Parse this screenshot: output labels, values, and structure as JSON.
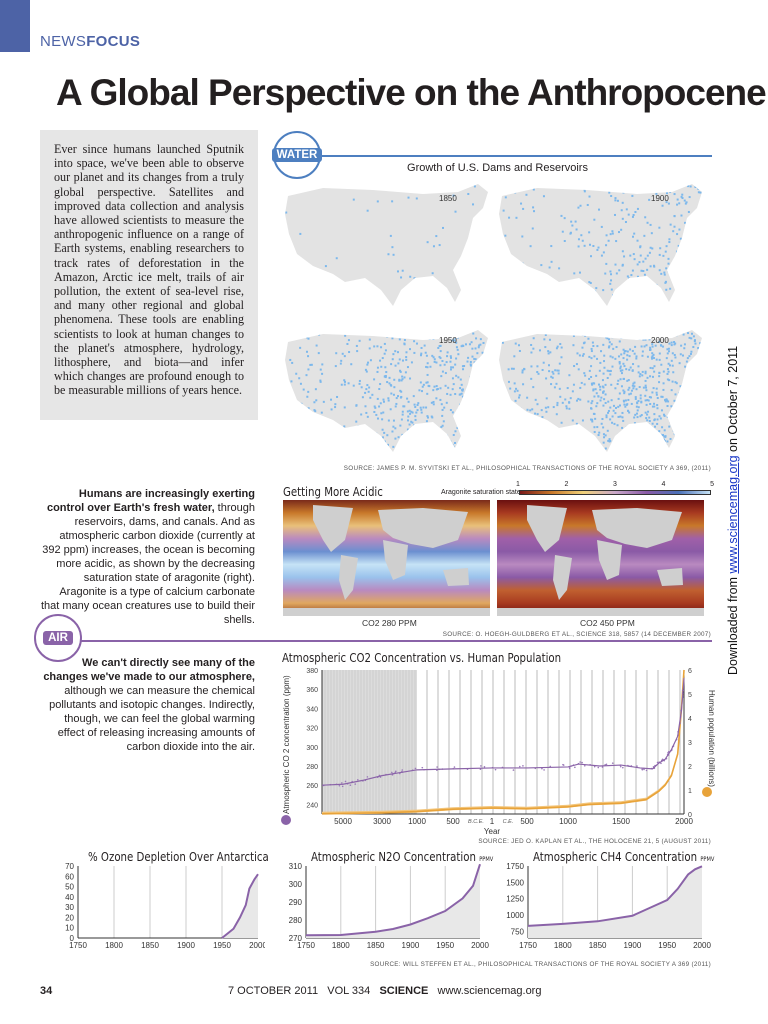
{
  "header": {
    "section_plain": "NEWS",
    "section_bold": "FOCUS",
    "title": "A Global Perspective on the Anthropocene"
  },
  "intro": "Ever since humans launched Sputnik into space, we've been able to observe our planet and its changes from a truly global perspective. Satellites and improved data collection and analysis have allowed scientists to measure the anthropogenic influence on a range of Earth systems, enabling researchers to track rates of deforestation in the Amazon, Arctic ice melt, trails of air pollution, the extent of sea-level rise, and many other regional and global phenomena. These tools are enabling scientists to look at human changes to the planet's atmosphere, hydrology, lithosphere, and biota—and infer which changes are profound enough to be measurable millions of years hence.",
  "water": {
    "badge": "WATER",
    "dams_title": "Growth of U.S. Dams and Reservoirs",
    "dam_years": [
      "1850",
      "1900",
      "1950",
      "2000"
    ],
    "dams_source": "SOURCE: JAMES P. M. SYVITSKI ET AL., PHILOSOPHICAL TRANSACTIONS OF THE ROYAL SOCIETY A 369, (2011)",
    "side_bold": "Humans are increasingly exerting control over Earth's fresh water,",
    "side_text": " through reservoirs, dams, and canals. And as atmospheric carbon dioxide (currently at 392 ppm) increases, the ocean is becoming more acidic, as shown by the decreasing saturation state of aragonite (right). Aragonite is a type of calcium carbonate that many ocean creatures use to build their shells.",
    "acid_title": "Getting More Acidic",
    "scale_label": "Aragonite saturation state",
    "scale_ticks": [
      "1",
      "2",
      "3",
      "4",
      "5"
    ],
    "map_left_label": "CO2 280 PPM",
    "map_right_label": "CO2 450 PPM",
    "acid_source": "SOURCE: O. HOEGH-GULDBERG ET AL., SCIENCE 318, 5857 (14 DECEMBER 2007)",
    "colors": {
      "accent": "#4d7fc0",
      "dam_dot": "#7cb8ec",
      "land": "#e3e3e3"
    }
  },
  "air": {
    "badge": "AIR",
    "side_bold": "We can't directly see many of the changes we've made to our atmosphere,",
    "side_text": " although we can measure the chemical pollutants and isotopic changes. Indirectly, though, we can feel the global warming effect of releasing increasing amounts of carbon dioxide into the air.",
    "co2_source": "SOURCE: JED O. KAPLAN ET AL., THE HOLOCENE 21, 5 (AUGUST 2011)",
    "bottom_source": "SOURCE: WILL STEFFEN ET AL., PHILOSOPHICAL TRANSACTIONS OF THE ROYAL SOCIETY A 369 (2011)",
    "colors": {
      "accent": "#8a63a8",
      "co2": "#8a63a8",
      "population": "#e8a33a"
    }
  },
  "chart_data": [
    {
      "type": "line",
      "title": "Atmospheric CO2 Concentration vs. Human Population",
      "xlabel": "Year",
      "ylabel": "Atmospheric CO 2 concentration (ppm)",
      "y2label": "Human population (billions)",
      "xticks": [
        {
          "v": -5000,
          "t": "5000"
        },
        {
          "v": -3000,
          "t": "3000"
        },
        {
          "v": -1000,
          "t": "1000"
        },
        {
          "v": -500,
          "t": "500"
        },
        {
          "v": 1,
          "t": "1"
        },
        {
          "v": 500,
          "t": "500"
        },
        {
          "v": 1000,
          "t": "1000"
        },
        {
          "v": 1500,
          "t": "1500"
        },
        {
          "v": 2000,
          "t": "2000"
        }
      ],
      "era_labels": [
        "B.C.E.",
        "C.E."
      ],
      "ylim": [
        230,
        380
      ],
      "yticks": [
        240,
        260,
        280,
        300,
        320,
        340,
        360,
        380
      ],
      "y2lim": [
        0,
        6
      ],
      "y2ticks": [
        0,
        1,
        2,
        3,
        4,
        5,
        6
      ],
      "grid": true,
      "series": [
        {
          "axis": "left",
          "x": [
            -6000,
            -5000,
            -4000,
            -3000,
            -2000,
            -1000,
            -500,
            1,
            500,
            1000,
            1100,
            1300,
            1500,
            1650,
            1750,
            1800,
            1850,
            1900,
            1950,
            1980,
            2000
          ],
          "values": [
            260,
            261,
            265,
            270,
            273,
            276,
            277,
            278,
            278,
            279,
            282,
            280,
            281,
            278,
            277,
            283,
            287,
            297,
            311,
            338,
            370
          ]
        },
        {
          "axis": "right",
          "x": [
            -6000,
            -3000,
            -1000,
            -500,
            1,
            500,
            1000,
            1200,
            1500,
            1700,
            1800,
            1850,
            1900,
            1950,
            1980,
            2000
          ],
          "values": [
            0.01,
            0.05,
            0.1,
            0.2,
            0.25,
            0.22,
            0.3,
            0.4,
            0.45,
            0.6,
            0.95,
            1.2,
            1.6,
            2.5,
            4.4,
            6.0
          ]
        }
      ]
    },
    {
      "type": "area",
      "title": "% Ozone Depletion Over Antarctica",
      "unit": "",
      "xlim": [
        1750,
        2000
      ],
      "xticks": [
        1750,
        1800,
        1850,
        1900,
        1950,
        2000
      ],
      "ylim": [
        0,
        70
      ],
      "yticks": [
        0,
        10,
        20,
        30,
        40,
        50,
        60,
        70
      ],
      "x": [
        1950,
        1966,
        1975,
        1983,
        1988,
        1995,
        2000
      ],
      "values": [
        0,
        9,
        20,
        32,
        48,
        57,
        62
      ]
    },
    {
      "type": "area",
      "title": "Atmospheric N2O Concentration",
      "unit": "PPMV",
      "xlim": [
        1750,
        2000
      ],
      "xticks": [
        1750,
        1800,
        1850,
        1900,
        1950,
        2000
      ],
      "ylim": [
        270,
        310
      ],
      "yticks": [
        270,
        280,
        290,
        300,
        310
      ],
      "x": [
        1750,
        1800,
        1850,
        1875,
        1900,
        1925,
        1950,
        1975,
        1990,
        2000
      ],
      "values": [
        271.5,
        271.7,
        273.5,
        275,
        277.5,
        281,
        285,
        292,
        299,
        311
      ]
    },
    {
      "type": "area",
      "title": "Atmospheric CH4 Concentration",
      "unit": "PPMV",
      "xlim": [
        1750,
        2000
      ],
      "xticks": [
        1750,
        1800,
        1850,
        1900,
        1950,
        2000
      ],
      "ylim": [
        650,
        1750
      ],
      "yticks": [
        750,
        1000,
        1250,
        1500,
        1750
      ],
      "x": [
        1750,
        1800,
        1850,
        1900,
        1925,
        1950,
        1965,
        1980,
        1990,
        2000
      ],
      "values": [
        835,
        865,
        905,
        990,
        1110,
        1230,
        1400,
        1620,
        1700,
        1745
      ]
    }
  ],
  "footer": {
    "page": "34",
    "date": "7 OCTOBER 2011",
    "vol": "VOL 334",
    "journal": "SCIENCE",
    "url": "www.sciencemag.org"
  },
  "download": {
    "prefix": "Downloaded from ",
    "link": "www.sciencemag.org",
    "suffix": " on October 7, 2011"
  }
}
